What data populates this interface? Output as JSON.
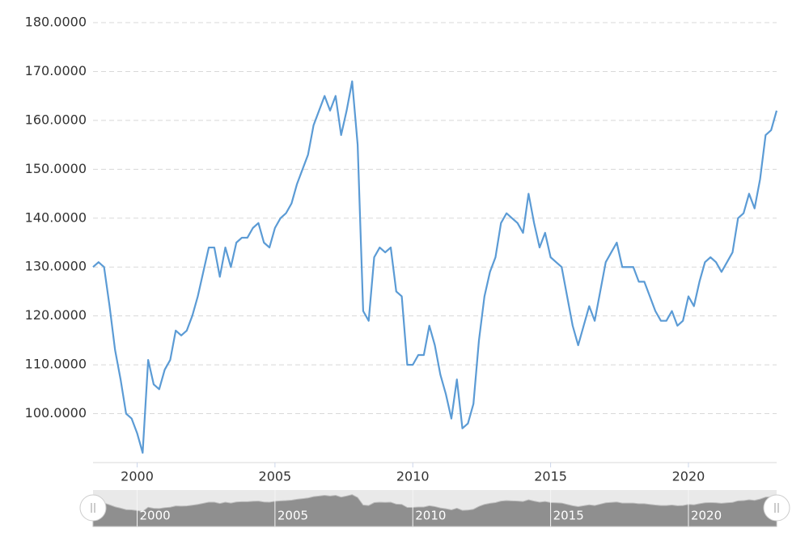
{
  "chart_data": {
    "type": "line",
    "x": [
      1998.4,
      1998.6,
      1998.8,
      1999.0,
      1999.2,
      1999.4,
      1999.6,
      1999.8,
      2000.0,
      2000.2,
      2000.4,
      2000.6,
      2000.8,
      2001.0,
      2001.2,
      2001.4,
      2001.6,
      2001.8,
      2002.0,
      2002.2,
      2002.4,
      2002.6,
      2002.8,
      2003.0,
      2003.2,
      2003.4,
      2003.6,
      2003.8,
      2004.0,
      2004.2,
      2004.4,
      2004.6,
      2004.8,
      2005.0,
      2005.2,
      2005.4,
      2005.6,
      2005.8,
      2006.0,
      2006.2,
      2006.4,
      2006.6,
      2006.8,
      2007.0,
      2007.2,
      2007.4,
      2007.6,
      2007.8,
      2008.0,
      2008.2,
      2008.4,
      2008.6,
      2008.8,
      2009.0,
      2009.2,
      2009.4,
      2009.6,
      2009.8,
      2010.0,
      2010.2,
      2010.4,
      2010.6,
      2010.8,
      2011.0,
      2011.2,
      2011.4,
      2011.6,
      2011.8,
      2012.0,
      2012.2,
      2012.4,
      2012.6,
      2012.8,
      2013.0,
      2013.2,
      2013.4,
      2013.6,
      2013.8,
      2014.0,
      2014.2,
      2014.4,
      2014.6,
      2014.8,
      2015.0,
      2015.2,
      2015.4,
      2015.6,
      2015.8,
      2016.0,
      2016.2,
      2016.4,
      2016.6,
      2016.8,
      2017.0,
      2017.2,
      2017.4,
      2017.6,
      2017.8,
      2018.0,
      2018.2,
      2018.4,
      2018.6,
      2018.8,
      2019.0,
      2019.2,
      2019.4,
      2019.6,
      2019.8,
      2020.0,
      2020.2,
      2020.4,
      2020.6,
      2020.8,
      2021.0,
      2021.2,
      2021.4,
      2021.6,
      2021.8,
      2022.0,
      2022.2,
      2022.4,
      2022.6,
      2022.8,
      2023.0,
      2023.2
    ],
    "series": [
      {
        "color": "#5b9bd5",
        "values": [
          130,
          131,
          130,
          122,
          113,
          107,
          100,
          99,
          96,
          92,
          111,
          106,
          105,
          109,
          111,
          117,
          116,
          117,
          120,
          124,
          129,
          134,
          134,
          128,
          134,
          130,
          135,
          136,
          136,
          138,
          139,
          135,
          134,
          138,
          140,
          141,
          143,
          147,
          150,
          153,
          159,
          162,
          165,
          162,
          165,
          157,
          162,
          168,
          155,
          121,
          119,
          132,
          134,
          133,
          134,
          125,
          124,
          110,
          110,
          112,
          112,
          118,
          114,
          108,
          104,
          99,
          107,
          97,
          98,
          102,
          115,
          124,
          129,
          132,
          139,
          141,
          140,
          139,
          137,
          145,
          139,
          134,
          137,
          132,
          131,
          130,
          124,
          118,
          114,
          118,
          122,
          119,
          125,
          131,
          133,
          135,
          130,
          130,
          130,
          127,
          127,
          124,
          121,
          119,
          119,
          121,
          118,
          119,
          124,
          122,
          127,
          131,
          132,
          131,
          129,
          131,
          133,
          140,
          141,
          145,
          142,
          148,
          157,
          158,
          162
        ]
      }
    ],
    "xlim": [
      1998.4,
      2023.2
    ],
    "xticks": [
      2000,
      2005,
      2010,
      2015,
      2020
    ],
    "ylim": [
      90,
      180
    ],
    "yticks": [
      {
        "value": 100,
        "label": "100.0000"
      },
      {
        "value": 110,
        "label": "110.0000"
      },
      {
        "value": 120,
        "label": "120.0000"
      },
      {
        "value": 130,
        "label": "130.0000"
      },
      {
        "value": 140,
        "label": "140.0000"
      },
      {
        "value": 150,
        "label": "150.0000"
      },
      {
        "value": 160,
        "label": "160.0000"
      },
      {
        "value": 170,
        "label": "170.0000"
      },
      {
        "value": 180,
        "label": "180.0000"
      }
    ],
    "grid": true
  }
}
